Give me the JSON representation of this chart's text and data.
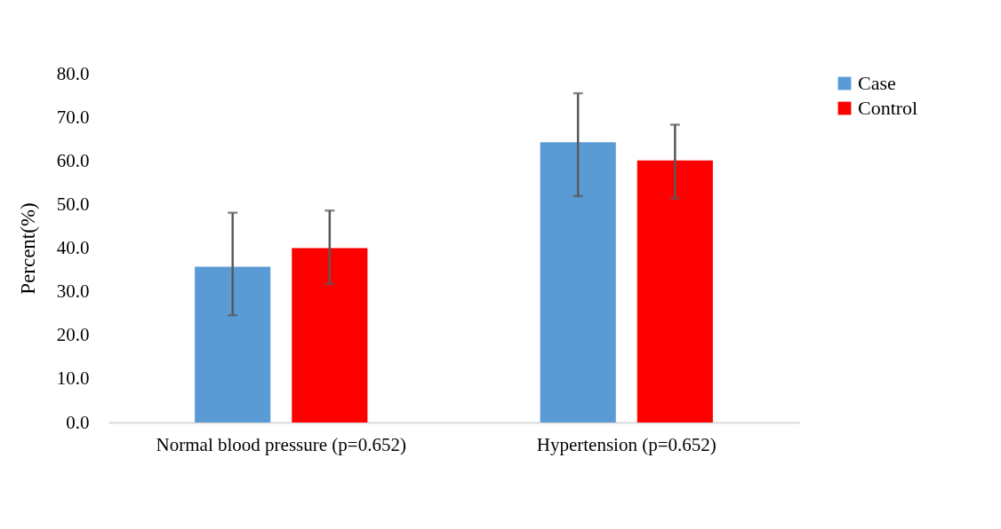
{
  "chart_data": {
    "type": "bar",
    "ylabel": "Percent(%)",
    "categories": [
      "Normal blood pressure (p=0.652)",
      "Hypertension (p=0.652)"
    ],
    "series": [
      {
        "name": "Case",
        "color": "#5b9bd5",
        "values": [
          35.7,
          64.3
        ],
        "errors": [
          [
            24.6,
            48.1
          ],
          [
            51.9,
            75.5
          ]
        ]
      },
      {
        "name": "Control",
        "color": "#ff0000",
        "values": [
          40.0,
          60.1
        ],
        "errors": [
          [
            31.8,
            48.6
          ],
          [
            51.4,
            68.3
          ]
        ]
      }
    ],
    "ylim": [
      0,
      80
    ],
    "yticks": [
      {
        "value": 0,
        "label": "0.0"
      },
      {
        "value": 10,
        "label": "10.0"
      },
      {
        "value": 20,
        "label": "20.0"
      },
      {
        "value": 30,
        "label": "30.0"
      },
      {
        "value": 40,
        "label": "40.0"
      },
      {
        "value": 50,
        "label": "50.0"
      },
      {
        "value": 60,
        "label": "60.0"
      },
      {
        "value": 70,
        "label": "70.0"
      },
      {
        "value": 80,
        "label": "80.0"
      }
    ],
    "grid": false,
    "legend": "right"
  }
}
